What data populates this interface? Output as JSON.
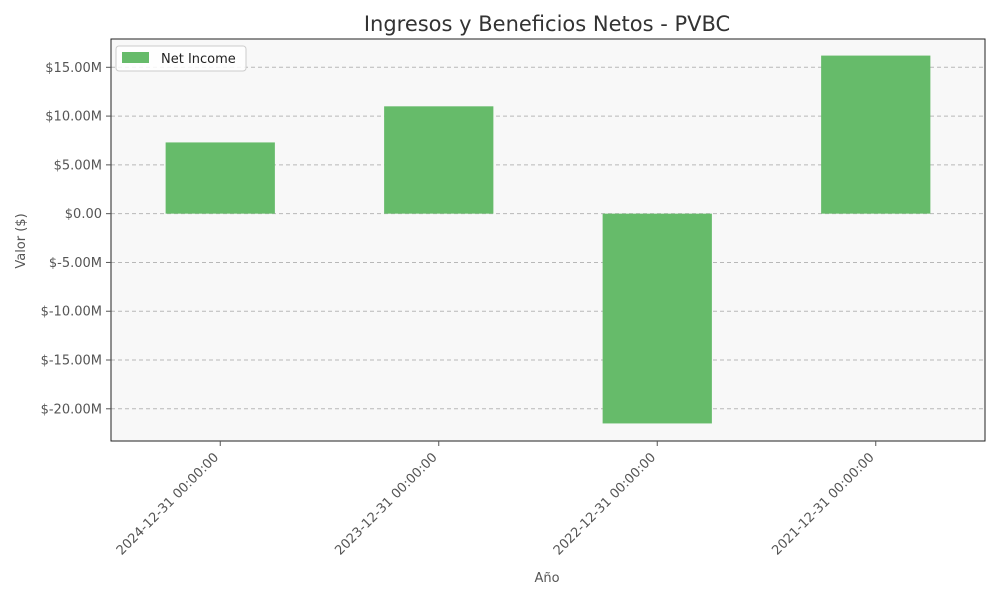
{
  "chart_data": {
    "type": "bar",
    "title": "Ingresos y Beneficios Netos - PVBC",
    "xlabel": "Año",
    "ylabel": "Valor ($)",
    "categories": [
      "2024-12-31 00:00:00",
      "2023-12-31 00:00:00",
      "2022-12-31 00:00:00",
      "2021-12-31 00:00:00"
    ],
    "series": [
      {
        "name": "Net Income",
        "values": [
          7.3,
          11.0,
          -21.5,
          16.2
        ],
        "color": "#66bb6a"
      }
    ],
    "value_unit": "millions of dollars",
    "yticks": [
      {
        "value": 15,
        "label": "$15.00M"
      },
      {
        "value": 10,
        "label": "$10.00M"
      },
      {
        "value": 5,
        "label": "$5.00M"
      },
      {
        "value": 0,
        "label": "$0.00"
      },
      {
        "value": -5,
        "label": "$-5.00M"
      },
      {
        "value": -10,
        "label": "$-10.00M"
      },
      {
        "value": -15,
        "label": "$-15.00M"
      },
      {
        "value": -20,
        "label": "$-20.00M"
      }
    ],
    "ylim": [
      -23.3,
      17.9
    ],
    "grid": "horizontal dashed",
    "legend_position": "top-left",
    "background_color": "#f8f8f8"
  }
}
